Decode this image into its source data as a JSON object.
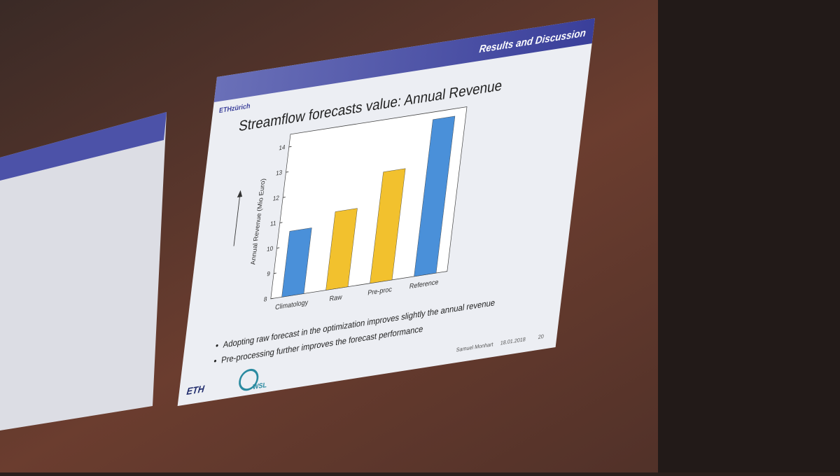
{
  "header": {
    "section": "Results and Discussion",
    "logo": "ETHzürich"
  },
  "chart_data": {
    "type": "bar",
    "title": "Streamflow forecasts value: Annual Revenue",
    "y_label": "Annual Revenue (Mio Euro)",
    "categories": [
      "Climatology",
      "Raw",
      "Pre-proc",
      "Reference"
    ],
    "values": [
      10.6,
      11.1,
      12.4,
      14.2
    ],
    "colors": [
      "#4a90d9",
      "#f2c12e",
      "#f2c12e",
      "#4a90d9"
    ],
    "ylim": [
      8,
      14.5
    ],
    "yticks": [
      8,
      9,
      10,
      11,
      12,
      13,
      14
    ],
    "grid": false
  },
  "bullets": [
    "Adopting raw forecast in the optimization improves slightly the annual revenue",
    "Pre-processing further improves the forecast performance"
  ],
  "footer": {
    "logos": [
      "ETH",
      "WSL"
    ],
    "author": "Samuel Monhart",
    "date": "18.01.2018",
    "page": "20"
  }
}
